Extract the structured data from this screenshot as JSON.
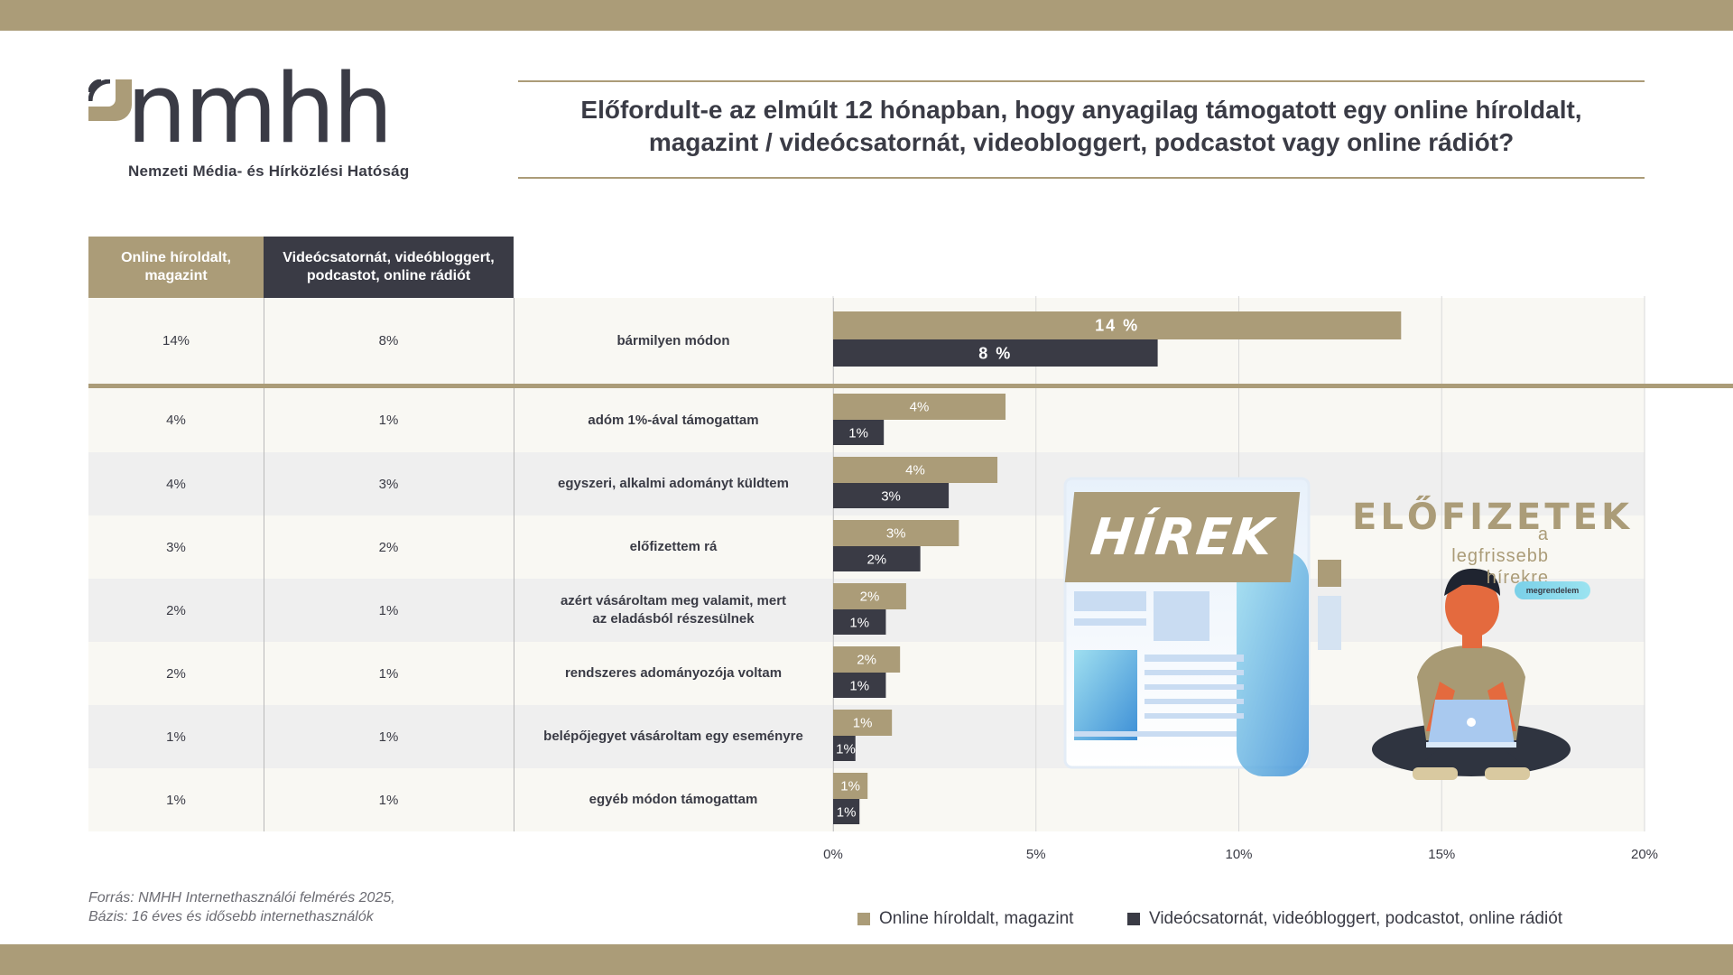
{
  "logo": {
    "text": "nmhh",
    "subtitle": "Nemzeti Média- és Hírközlési Hatóság"
  },
  "title": {
    "line1": "Előfordult-e az elmúlt 12 hónapban, hogy anyagilag támogatott egy online híroldalt,",
    "line2": "magazint / videócsatornát, videobloggert, podcastot vagy online rádiót?"
  },
  "table": {
    "headers": [
      "Online híroldalt, magazint",
      "Videócsatornát, videóbloggert, podcastot, online rádiót"
    ],
    "rows": [
      {
        "c1": "14%",
        "c2": "8%",
        "label": "bármilyen módon"
      },
      {
        "c1": "4%",
        "c2": "1%",
        "label": "adóm 1%-ával támogattam"
      },
      {
        "c1": "4%",
        "c2": "3%",
        "label": "egyszeri, alkalmi adományt küldtem"
      },
      {
        "c1": "3%",
        "c2": "2%",
        "label": "előfizettem rá"
      },
      {
        "c1": "2%",
        "c2": "1%",
        "label": "azért vásároltam meg valamit, mert az eladásból részesülnek"
      },
      {
        "c1": "2%",
        "c2": "1%",
        "label": "rendszeres adományozója voltam"
      },
      {
        "c1": "1%",
        "c2": "1%",
        "label": "belépőjegyet vásároltam egy eseményre"
      },
      {
        "c1": "1%",
        "c2": "1%",
        "label": "egyéb módon támogattam"
      }
    ]
  },
  "chart_data": {
    "type": "bar",
    "orientation": "horizontal",
    "categories": [
      "bármilyen módon",
      "adóm 1%-ával támogattam",
      "egyszeri, alkalmi adományt küldtem",
      "előfizettem rá",
      "azért vásároltam meg valamit, mert az eladásból részesülnek",
      "rendszeres adományozója voltam",
      "belépőjegyet vásároltam egy eseményre",
      "egyéb módon támogattam"
    ],
    "series": [
      {
        "name": "Online híroldalt, magazint",
        "color": "#ab9c78",
        "values": [
          14,
          4.25,
          4.05,
          3.1,
          1.8,
          1.65,
          1.45,
          0.85
        ],
        "labels": [
          "14 %",
          "4%",
          "4%",
          "3%",
          "2%",
          "2%",
          "1%",
          "1%"
        ]
      },
      {
        "name": "Videócsatornát, videóbloggert, podcastot, online rádiót",
        "color": "#3a3b45",
        "values": [
          8,
          1.25,
          2.85,
          2.15,
          1.3,
          1.3,
          0.55,
          0.65
        ],
        "labels": [
          "8 %",
          "1%",
          "3%",
          "2%",
          "1%",
          "1%",
          "1%",
          "1%"
        ]
      }
    ],
    "xlim": [
      0,
      20
    ],
    "xticks": [
      "0%",
      "5%",
      "10%",
      "15%",
      "20%"
    ],
    "grid": true,
    "legend_position": "bottom"
  },
  "illustration": {
    "news_word": "HÍREK",
    "headline": "ELŐFIZETEK",
    "sub1": "a legfrissebb",
    "sub2": "hírekre",
    "button": "megrendelem"
  },
  "footer": {
    "source_line1": "Forrás: NMHH Internethasználói felmérés 2025,",
    "source_line2": "Bázis: 16 éves és idősebb internethasználók"
  },
  "legend": {
    "item1": "Online híroldalt, magazint",
    "item2": "Videócsatornát, videóbloggert, podcastot, online rádiót"
  }
}
